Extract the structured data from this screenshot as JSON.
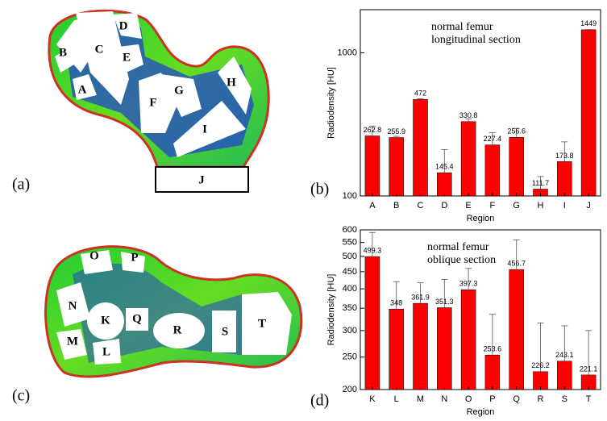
{
  "chart_data": [
    {
      "type": "bar",
      "annotation": [
        "normal femur",
        "longitudinal section"
      ],
      "y_label": "Radiodensity [HU]",
      "x_label": "Region",
      "categories": [
        "A",
        "B",
        "C",
        "D",
        "E",
        "F",
        "G",
        "H",
        "I",
        "J"
      ],
      "values": [
        262.8,
        255.9,
        472,
        145.4,
        330.8,
        227.4,
        256.6,
        111.7,
        173.8,
        1449
      ],
      "errors": [
        45,
        5,
        5,
        65,
        15,
        50,
        40,
        25,
        65,
        5
      ],
      "color": "#ff0000",
      "log_scale": true,
      "ylim": [
        100,
        2000
      ],
      "yticks": [
        100,
        1000
      ]
    },
    {
      "type": "bar",
      "annotation": [
        "normal femur",
        "oblique section"
      ],
      "y_label": "Radiodensity [HU]",
      "x_label": "Region",
      "categories": [
        "K",
        "L",
        "M",
        "N",
        "O",
        "P",
        "Q",
        "R",
        "S",
        "T"
      ],
      "values": [
        499.3,
        348,
        361.9,
        351.3,
        397.3,
        253.6,
        456.7,
        226.2,
        243.1,
        221.1
      ],
      "errors": [
        90,
        72,
        55,
        75,
        63,
        82,
        103,
        90,
        67,
        79
      ],
      "color": "#ff0000",
      "log_scale": true,
      "ylim": [
        200,
        600
      ],
      "yticks": [
        200,
        250,
        300,
        350,
        400,
        450,
        500,
        550,
        600
      ]
    }
  ],
  "panel_labels": [
    "(a)",
    "(b)",
    "(c)",
    "(d)"
  ],
  "diagrams": [
    {
      "labels": [
        "A",
        "B",
        "C",
        "D",
        "E",
        "F",
        "G",
        "H",
        "I",
        "J"
      ]
    },
    {
      "labels": [
        "O",
        "P",
        "N",
        "K",
        "Q",
        "M",
        "L",
        "R",
        "S",
        "T"
      ]
    }
  ]
}
